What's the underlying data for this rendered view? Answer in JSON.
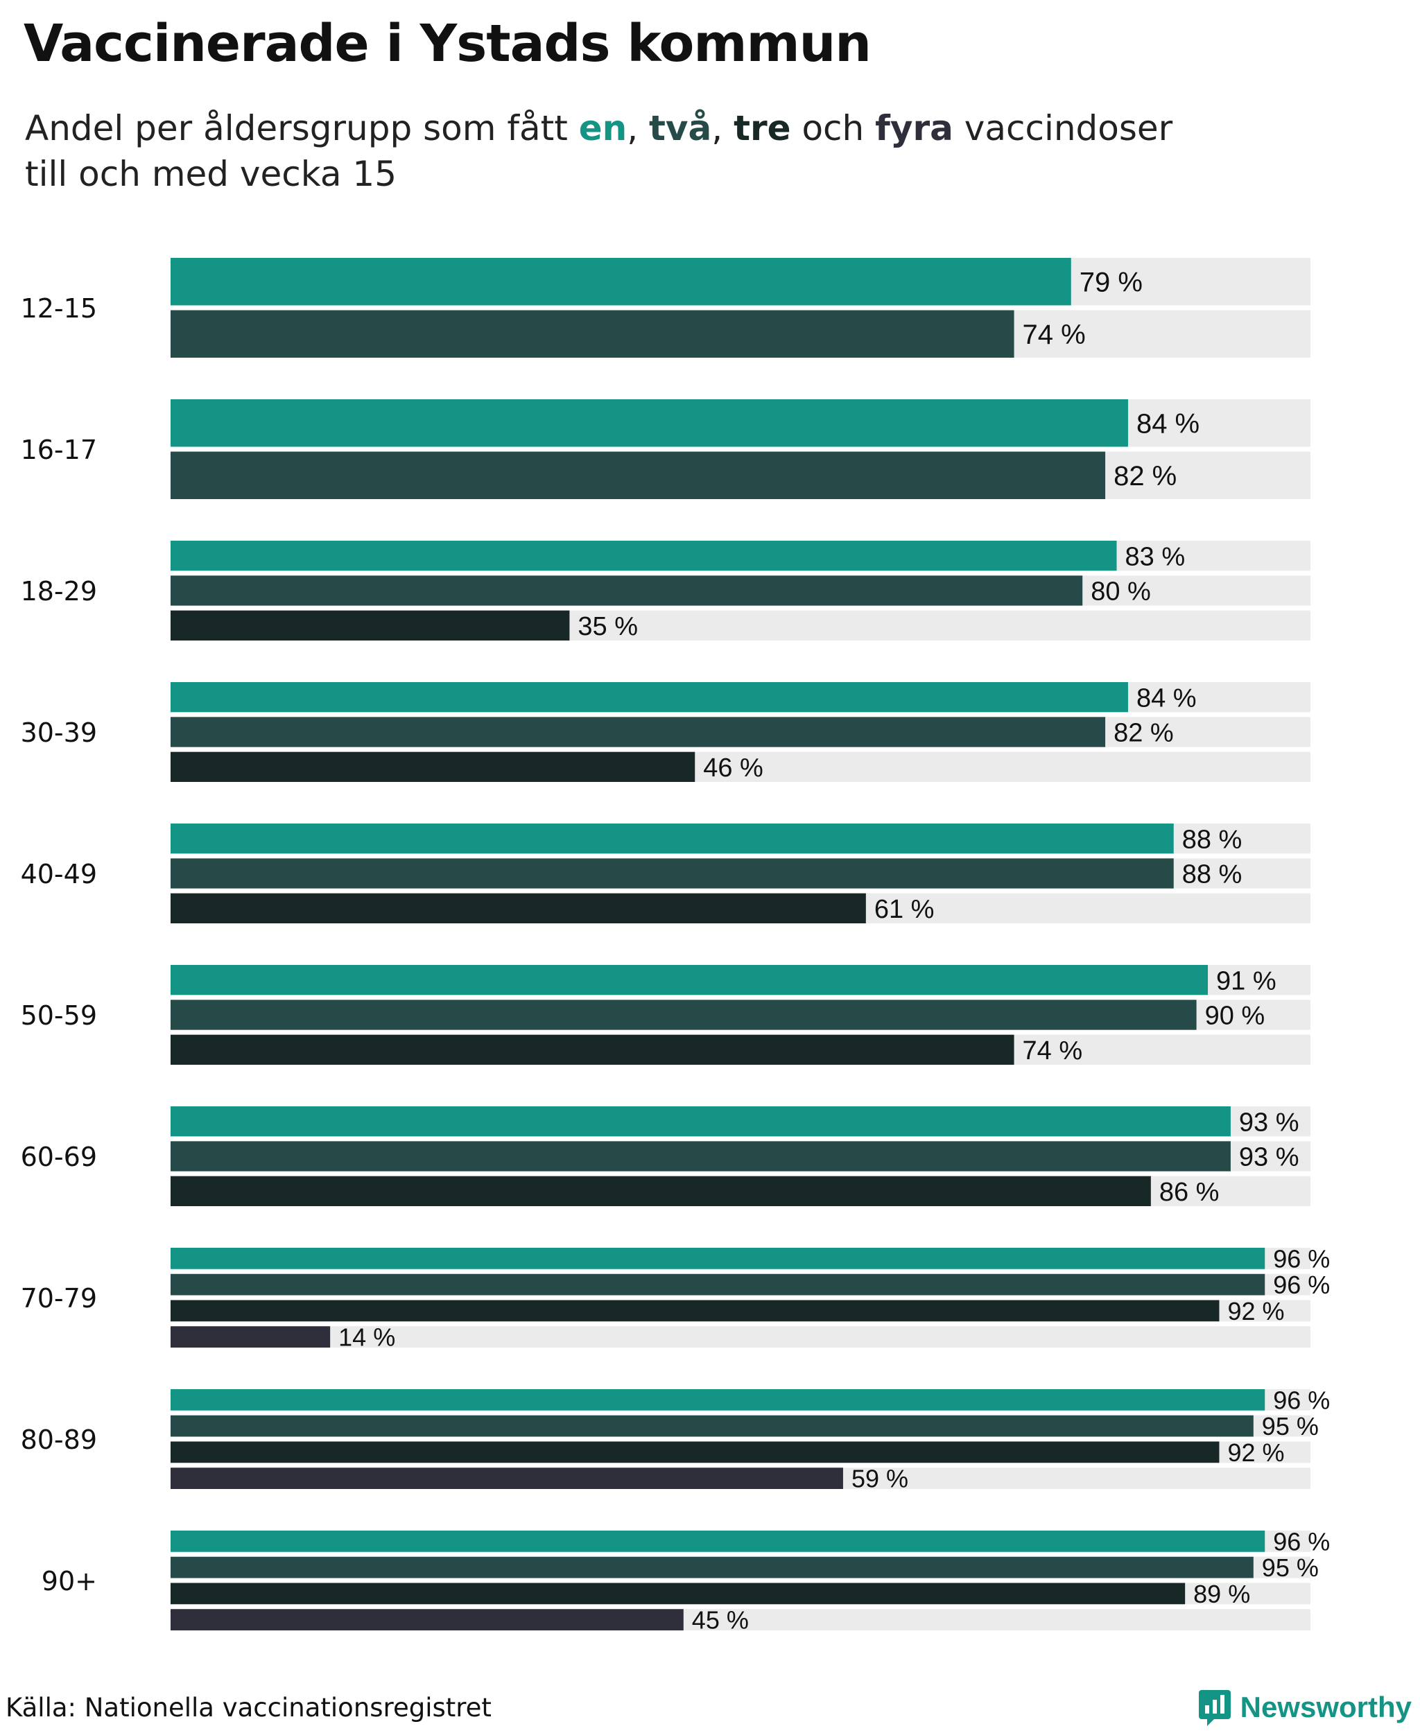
{
  "title": "Vaccinerade i Ystads kommun",
  "subtitle": {
    "line1_prefix": "Andel per åldersgrupp som fått ",
    "dose1": "en",
    "sep1": ", ",
    "dose2": "två",
    "sep2": ", ",
    "dose3": "tre",
    "conj": " och ",
    "dose4": "fyra",
    "line1_suffix": " vaccindoser",
    "line2": "till och med vecka 15"
  },
  "source": "Källa: Nationella vaccinationsregistret",
  "brand": {
    "name": "Newsworthy",
    "logo_icon": "newsworthy-logo-icon"
  },
  "colors": {
    "dose1": "#139485",
    "dose2": "#264a48",
    "dose3": "#182826",
    "dose4": "#2f2f3b",
    "track": "#ebebeb",
    "text": "#111111"
  },
  "chart_data": {
    "type": "bar",
    "orientation": "horizontal",
    "value_suffix": " %",
    "xlim": [
      0,
      100
    ],
    "grid": false,
    "series": [
      {
        "key": "dose1"
      },
      {
        "key": "dose2"
      },
      {
        "key": "dose3"
      },
      {
        "key": "dose4"
      }
    ],
    "groups": [
      {
        "label": "12-15",
        "values": [
          79,
          74
        ]
      },
      {
        "label": "16-17",
        "values": [
          84,
          82
        ]
      },
      {
        "label": "18-29",
        "values": [
          83,
          80,
          35
        ]
      },
      {
        "label": "30-39",
        "values": [
          84,
          82,
          46
        ]
      },
      {
        "label": "40-49",
        "values": [
          88,
          88,
          61
        ]
      },
      {
        "label": "50-59",
        "values": [
          91,
          90,
          74
        ]
      },
      {
        "label": "60-69",
        "values": [
          93,
          93,
          86
        ]
      },
      {
        "label": "70-79",
        "values": [
          96,
          96,
          92,
          14
        ]
      },
      {
        "label": "80-89",
        "values": [
          96,
          95,
          92,
          59
        ]
      },
      {
        "label": "90+",
        "values": [
          96,
          95,
          89,
          45
        ]
      }
    ]
  }
}
